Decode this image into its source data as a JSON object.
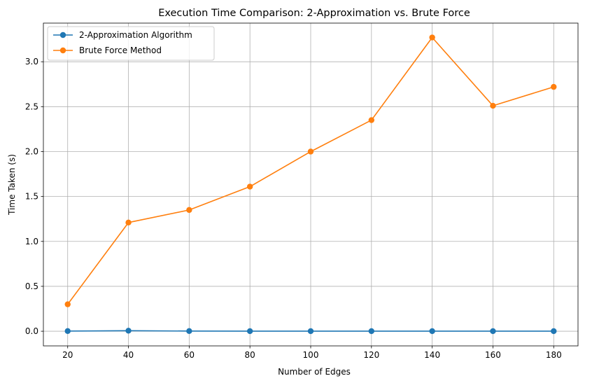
{
  "chart_data": {
    "type": "line",
    "title": "Execution Time Comparison: 2-Approximation vs. Brute Force",
    "xlabel": "Number of Edges",
    "ylabel": "Time Taken (s)",
    "x": [
      20,
      40,
      60,
      80,
      100,
      120,
      140,
      160,
      180
    ],
    "xlim": [
      12.0,
      188.0
    ],
    "ylim": [
      -0.163,
      3.43
    ],
    "xticks": [
      "20",
      "40",
      "60",
      "80",
      "100",
      "120",
      "140",
      "160",
      "180"
    ],
    "yticks": [
      "0.0",
      "0.5",
      "1.0",
      "1.5",
      "2.0",
      "2.5",
      "3.0"
    ],
    "grid": true,
    "legend_position": "top-left",
    "series": [
      {
        "name": "2-Approximation Algorithm",
        "color": "#1f77b4",
        "marker": "circle",
        "values": [
          0.002,
          0.006,
          0.002,
          0.001,
          0.001,
          0.001,
          0.001,
          0.001,
          0.001
        ]
      },
      {
        "name": "Brute Force Method",
        "color": "#ff7f0e",
        "marker": "circle",
        "values": [
          0.3,
          1.21,
          1.35,
          1.61,
          2.0,
          2.35,
          3.27,
          2.51,
          2.72
        ]
      }
    ]
  }
}
